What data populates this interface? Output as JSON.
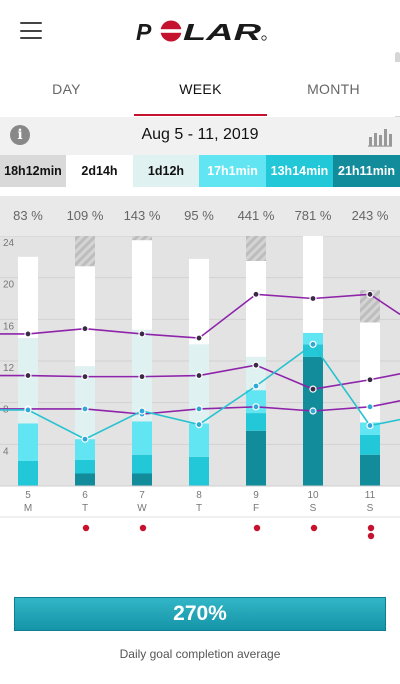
{
  "app": {
    "brand": "POLAR",
    "menu_icon": "hamburger-menu-icon"
  },
  "tabs": [
    {
      "label": "DAY",
      "active": false
    },
    {
      "label": "WEEK",
      "active": true
    },
    {
      "label": "MONTH",
      "active": false
    }
  ],
  "datebar": {
    "title": "Aug 5 - 11, 2019",
    "info_icon": "info-icon",
    "chart_icon": "bar-chart-icon"
  },
  "summary": [
    {
      "label": "18h12min",
      "bg": "#d9d9d9",
      "fg": "#111111"
    },
    {
      "label": "2d14h",
      "bg": "#ffffff",
      "fg": "#111111"
    },
    {
      "label": "1d12h",
      "bg": "#dff1f0",
      "fg": "#111111"
    },
    {
      "label": "17h1min",
      "bg": "#62e5f2",
      "fg": "#ffffff"
    },
    {
      "label": "13h14min",
      "bg": "#22c7d8",
      "fg": "#ffffff"
    },
    {
      "label": "21h11min",
      "bg": "#128b9b",
      "fg": "#ffffff"
    }
  ],
  "percentages": [
    "83 %",
    "109 %",
    "143 %",
    "95 %",
    "441 %",
    "781 %",
    "243 %"
  ],
  "chart_data": {
    "type": "bar",
    "ylim": [
      0,
      24
    ],
    "yticks": [
      "24",
      "20",
      "16",
      "12",
      "8",
      "4"
    ],
    "categories": [
      {
        "day": "5",
        "weekday": "M"
      },
      {
        "day": "6",
        "weekday": "T"
      },
      {
        "day": "7",
        "weekday": "W"
      },
      {
        "day": "8",
        "weekday": "T"
      },
      {
        "day": "9",
        "weekday": "F"
      },
      {
        "day": "10",
        "weekday": "S"
      },
      {
        "day": "11",
        "weekday": "S"
      }
    ],
    "series": [
      {
        "color": "#128b9b",
        "values": [
          0,
          1.2,
          1.2,
          0,
          5.3,
          12.4,
          3.0
        ]
      },
      {
        "color": "#22c7d8",
        "values": [
          2.4,
          1.3,
          1.8,
          2.8,
          1.7,
          1.2,
          1.9
        ]
      },
      {
        "color": "#62e5f2",
        "values": [
          3.6,
          2.0,
          3.2,
          3.2,
          2.2,
          1.1,
          1.2
        ]
      },
      {
        "color": "#dff1f0",
        "values": [
          8.2,
          7.0,
          8.8,
          7.6,
          3.2,
          0,
          0
        ]
      },
      {
        "color": "#ffffff",
        "values": [
          7.8,
          9.6,
          8.6,
          8.2,
          9.2,
          9.4,
          9.6
        ]
      },
      {
        "color": "#c9c9c9",
        "values": [
          0,
          3.0,
          1.0,
          0,
          2.6,
          1.8,
          3.1
        ]
      }
    ],
    "lines": [
      {
        "color": "#8e24aa",
        "values": [
          14.6,
          15.1,
          14.6,
          14.2,
          18.4,
          18.0,
          18.4
        ]
      },
      {
        "color": "#8e24aa",
        "values": [
          10.6,
          10.5,
          10.5,
          10.6,
          11.6,
          9.3,
          10.2
        ]
      },
      {
        "color": "#8e24aa",
        "values": [
          7.4,
          7.4,
          6.9,
          7.4,
          7.6,
          7.2,
          7.6
        ]
      },
      {
        "color": "#26c2d0",
        "values": [
          7.3,
          4.5,
          7.2,
          5.9,
          9.6,
          13.6,
          5.8
        ]
      }
    ],
    "dots": [
      0,
      1,
      1,
      0,
      1,
      1,
      2
    ]
  },
  "progress": {
    "value": "270%",
    "caption": "Daily goal completion average"
  },
  "colors": {
    "accent": "#c4122f",
    "dot": "#c4122f",
    "bar_background": "#e3e3e3",
    "progress": "#1aa0b4"
  }
}
